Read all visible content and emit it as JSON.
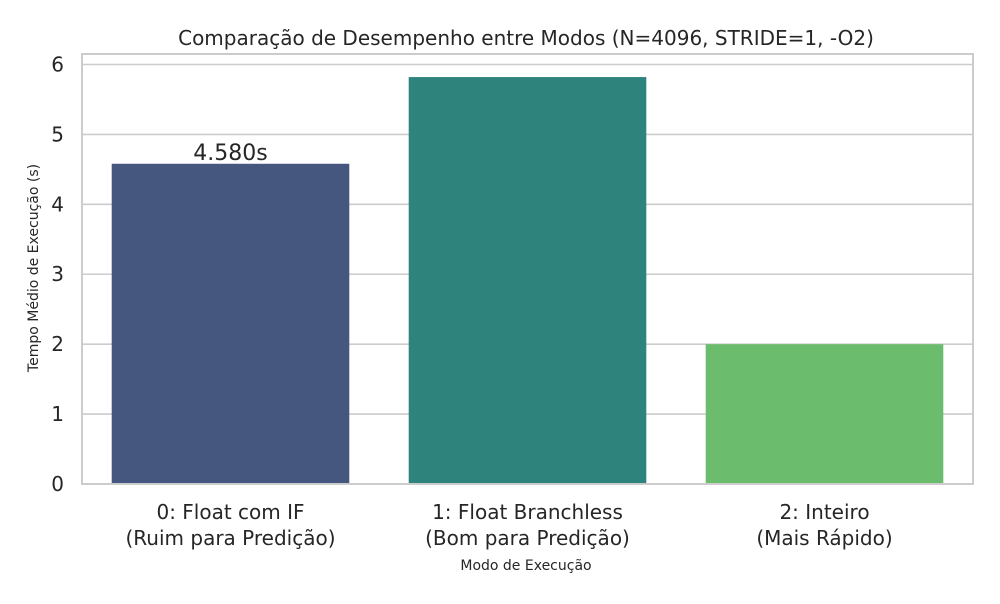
{
  "chart_data": {
    "type": "bar",
    "title": "Comparação de Desempenho entre Modos (N=4096, STRIDE=1, -O2)",
    "xlabel": "Modo de Execução",
    "ylabel": "Tempo Médio de Execução (s)",
    "categories": [
      [
        "0: Float com IF",
        "(Ruim para Predição)"
      ],
      [
        "1: Float Branchless",
        "(Bom para Predição)"
      ],
      [
        "2: Inteiro",
        "(Mais Rápido)"
      ]
    ],
    "values": [
      4.58,
      5.82,
      2.0
    ],
    "data_labels": [
      "4.580s",
      "",
      ""
    ],
    "colors": [
      "#46577f",
      "#2e837d",
      "#6bbd6d"
    ],
    "ylim": [
      0,
      6.15
    ],
    "yticks": [
      0,
      1,
      2,
      3,
      4,
      5,
      6
    ],
    "grid": true
  }
}
